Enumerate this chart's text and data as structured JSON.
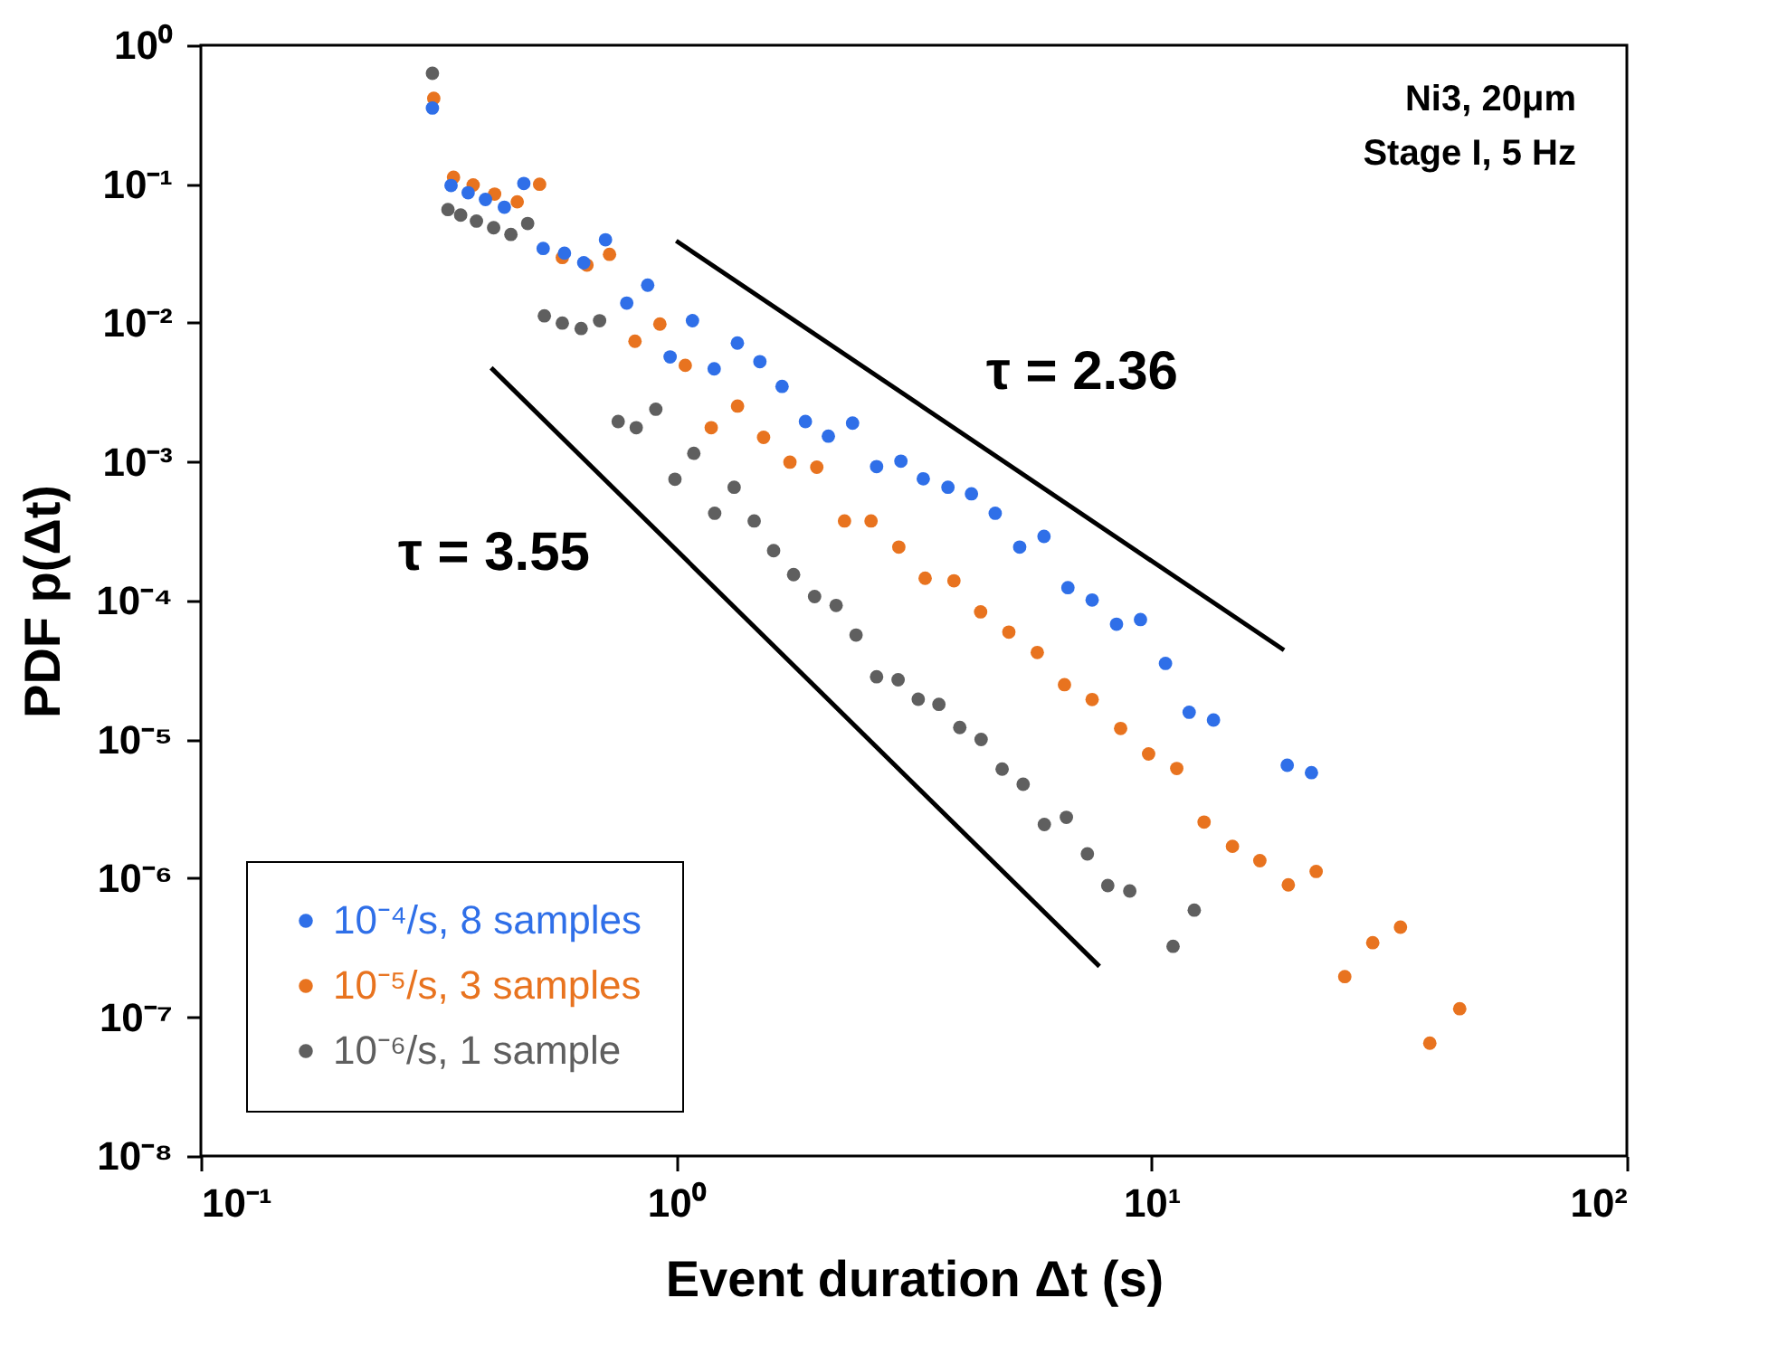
{
  "chart_data": {
    "type": "scatter",
    "xlabel": "Event duration Δt  (s)",
    "ylabel": "PDF p(Δt)",
    "log": "xy",
    "grid": false,
    "legend": "bottom left",
    "marker": "circle",
    "xlim": [
      0.1,
      100
    ],
    "ylim": [
      1e-08,
      1
    ],
    "xticks": [
      {
        "value": 0.1,
        "label": "10⁻¹"
      },
      {
        "value": 1,
        "label": "10⁰"
      },
      {
        "value": 10,
        "label": "10¹"
      },
      {
        "value": 100,
        "label": "10²"
      }
    ],
    "yticks": [
      {
        "value": 1e-08,
        "label": "10⁻⁸"
      },
      {
        "value": 1e-07,
        "label": "10⁻⁷"
      },
      {
        "value": 1e-06,
        "label": "10⁻⁶"
      },
      {
        "value": 1e-05,
        "label": "10⁻⁵"
      },
      {
        "value": 0.0001,
        "label": "10⁻⁴"
      },
      {
        "value": 0.001,
        "label": "10⁻³"
      },
      {
        "value": 0.01,
        "label": "10⁻²"
      },
      {
        "value": 0.1,
        "label": "10⁻¹"
      },
      {
        "value": 1,
        "label": "10⁰"
      }
    ],
    "annotations": [
      "Ni3, 20μm",
      "Stage I, 5 Hz",
      "τ = 2.36",
      "τ = 3.55"
    ],
    "series": [
      {
        "name": "10⁻⁴/s, 8 samples",
        "color": "#2f6fe8",
        "x": [
          0.307,
          0.336,
          0.365,
          0.397,
          0.435,
          0.478,
          0.525,
          0.582,
          0.639,
          0.71,
          0.787,
          0.871,
          0.971,
          1.082,
          1.202,
          1.345,
          1.5,
          1.67,
          1.87,
          2.09,
          2.35,
          2.64,
          2.97,
          3.31,
          3.73,
          4.18,
          4.69,
          5.28,
          5.94,
          6.67,
          7.5,
          8.44,
          9.48,
          10.7,
          12.0,
          13.5,
          19.3,
          21.7
        ],
        "values": [
          0.353,
          0.0977,
          0.0866,
          0.0775,
          0.0681,
          0.101,
          0.0344,
          0.0318,
          0.0271,
          0.0397,
          0.0139,
          0.0187,
          0.00569,
          0.01038,
          0.00467,
          0.00716,
          0.00526,
          0.00349,
          0.00195,
          0.00153,
          0.0019,
          0.000923,
          0.00101,
          0.000754,
          0.000655,
          0.000588,
          0.000426,
          0.000243,
          0.00029,
          0.000124,
          0.000101,
          6.76e-05,
          7.31e-05,
          3.53e-05,
          1.57e-05,
          1.38e-05,
          6.52e-06,
          5.77e-06
        ]
      },
      {
        "name": "10⁻⁵/s, 3 samples",
        "color": "#e8731f",
        "x": [
          0.309,
          0.34,
          0.374,
          0.415,
          0.463,
          0.516,
          0.576,
          0.649,
          0.724,
          0.819,
          0.924,
          1.045,
          1.185,
          1.346,
          1.527,
          1.735,
          1.976,
          2.26,
          2.57,
          2.94,
          3.34,
          3.84,
          4.37,
          5.01,
          5.75,
          6.56,
          7.5,
          8.61,
          9.86,
          11.3,
          12.9,
          14.8,
          16.9,
          19.4,
          22.2,
          25.5,
          29.2,
          33.4,
          38.5,
          44.5
        ],
        "values": [
          0.414,
          0.112,
          0.0985,
          0.0847,
          0.0745,
          0.0997,
          0.0296,
          0.0261,
          0.0312,
          0.00738,
          0.00982,
          0.00495,
          0.00176,
          0.00252,
          0.0015,
          0.000994,
          0.000914,
          0.000375,
          0.000375,
          0.000243,
          0.000145,
          0.000139,
          8.3e-05,
          5.93e-05,
          4.23e-05,
          2.48e-05,
          1.94e-05,
          1.2e-05,
          7.87e-06,
          6.18e-06,
          2.54e-06,
          1.7e-06,
          1.34e-06,
          8.97e-07,
          1.12e-06,
          1.96e-07,
          3.44e-07,
          4.45e-07,
          6.5e-08,
          1.15e-07
        ]
      },
      {
        "name": "10⁻⁶/s, 1 sample",
        "color": "#5f5f5f",
        "x": [
          0.307,
          0.331,
          0.352,
          0.38,
          0.413,
          0.449,
          0.487,
          0.528,
          0.576,
          0.631,
          0.69,
          0.755,
          0.824,
          0.906,
          0.994,
          1.089,
          1.205,
          1.324,
          1.459,
          1.603,
          1.766,
          1.955,
          2.17,
          2.39,
          2.64,
          2.93,
          3.23,
          3.57,
          3.95,
          4.38,
          4.85,
          5.37,
          5.95,
          6.62,
          7.33,
          8.09,
          9.0,
          11.1,
          12.3
        ],
        "values": [
          0.628,
          0.0655,
          0.0598,
          0.0541,
          0.0485,
          0.0434,
          0.052,
          0.01124,
          0.00997,
          0.00912,
          0.01037,
          0.00195,
          0.00176,
          0.00239,
          0.000748,
          0.00115,
          0.000426,
          0.000655,
          0.000375,
          0.000229,
          0.000154,
          0.000107,
          9.23e-05,
          5.65e-05,
          2.83e-05,
          2.69e-05,
          1.95e-05,
          1.79e-05,
          1.22e-05,
          1e-05,
          6.12e-06,
          4.76e-06,
          2.44e-06,
          2.75e-06,
          1.5e-06,
          8.87e-07,
          8.11e-07,
          3.24e-07,
          5.9e-07
        ]
      },
      {
        "type": "line",
        "marker": "none",
        "color": "#000000",
        "x": [
          1.0,
          19.0
        ],
        "values": [
          0.039,
          4.4e-05
        ]
      },
      {
        "type": "line",
        "marker": "none",
        "color": "#000000",
        "x": [
          0.408,
          7.77
        ],
        "values": [
          0.00475,
          2.32e-07
        ]
      }
    ]
  }
}
